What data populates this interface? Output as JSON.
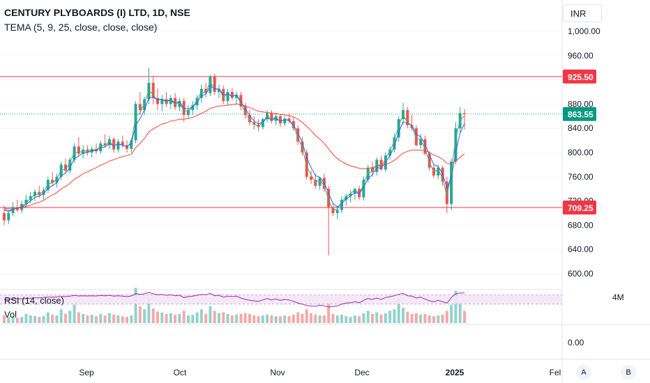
{
  "header": {
    "title": "CENTURY PLYBOARDS (I) LTD, 1D, NSE",
    "indicator": "TEMA (5, 9, 25, close, close, close)"
  },
  "currency": "INR",
  "time_axis": {
    "labels": [
      "Sep",
      "Oct",
      "Nov",
      "Dec",
      "2025",
      "Fel"
    ]
  },
  "buttons": {
    "a": "A",
    "b": "B"
  },
  "panes": {
    "rsi_label": "RSI (14, close)",
    "vol_label": "Vol",
    "vol_axis_top": "4M",
    "vol_axis_zero": "0.00"
  },
  "price_labels": {
    "level_high": "925.50",
    "last_price": "863.55",
    "level_low": "709.25"
  },
  "colors": {
    "up": "#26a69a",
    "down": "#ef5350",
    "level_line": "#f23645",
    "ma_fast": "#4caf50",
    "ma_mid": "#2962ff",
    "ma_slow": "#f44336",
    "rsi": "#9c27b0",
    "last_price_bg": "#089981"
  },
  "chart_data": {
    "type": "candlestick",
    "title": "CENTURY PLYBOARDS (I) LTD, 1D, NSE",
    "y_axis": {
      "ticks": [
        1000,
        960,
        920,
        880,
        840,
        800,
        760,
        720,
        680,
        640,
        600
      ],
      "tick_labels": [
        "1,000.00",
        "960.00",
        "920.00",
        "880.00",
        "840.00",
        "800.00",
        "760.00",
        "720.00",
        "680.00",
        "640.00",
        "600.00"
      ],
      "range": [
        580,
        1035
      ]
    },
    "x_axis": {
      "labels": [
        "Sep",
        "Oct",
        "Nov",
        "Dec",
        "2025",
        "Fel"
      ]
    },
    "horizontal_levels": [
      925.5,
      709.25
    ],
    "last_price": 863.55,
    "candles": [
      [
        700,
        712,
        680,
        688
      ],
      [
        688,
        705,
        682,
        700
      ],
      [
        700,
        718,
        695,
        710
      ],
      [
        710,
        722,
        702,
        705
      ],
      [
        705,
        720,
        700,
        715
      ],
      [
        715,
        730,
        708,
        722
      ],
      [
        722,
        735,
        716,
        728
      ],
      [
        728,
        740,
        720,
        735
      ],
      [
        735,
        745,
        725,
        730
      ],
      [
        730,
        742,
        722,
        738
      ],
      [
        738,
        760,
        733,
        755
      ],
      [
        755,
        768,
        745,
        750
      ],
      [
        750,
        765,
        742,
        760
      ],
      [
        760,
        785,
        755,
        780
      ],
      [
        780,
        790,
        765,
        770
      ],
      [
        770,
        792,
        765,
        788
      ],
      [
        788,
        815,
        783,
        810
      ],
      [
        810,
        825,
        795,
        798
      ],
      [
        798,
        812,
        790,
        805
      ],
      [
        805,
        812,
        795,
        800
      ],
      [
        800,
        810,
        792,
        806
      ],
      [
        806,
        815,
        798,
        802
      ],
      [
        802,
        820,
        798,
        815
      ],
      [
        815,
        830,
        808,
        812
      ],
      [
        812,
        828,
        806,
        822
      ],
      [
        822,
        825,
        800,
        805
      ],
      [
        805,
        822,
        800,
        818
      ],
      [
        818,
        828,
        808,
        812
      ],
      [
        812,
        820,
        800,
        806
      ],
      [
        806,
        824,
        800,
        820
      ],
      [
        820,
        885,
        815,
        880
      ],
      [
        880,
        900,
        862,
        870
      ],
      [
        870,
        892,
        862,
        888
      ],
      [
        888,
        940,
        880,
        915
      ],
      [
        915,
        925,
        880,
        890
      ],
      [
        890,
        905,
        870,
        880
      ],
      [
        880,
        895,
        868,
        888
      ],
      [
        888,
        900,
        875,
        880
      ],
      [
        880,
        895,
        872,
        890
      ],
      [
        890,
        898,
        870,
        875
      ],
      [
        875,
        890,
        868,
        885
      ],
      [
        885,
        890,
        850,
        862
      ],
      [
        862,
        878,
        855,
        870
      ],
      [
        870,
        885,
        862,
        878
      ],
      [
        878,
        895,
        870,
        890
      ],
      [
        890,
        912,
        882,
        905
      ],
      [
        905,
        915,
        890,
        898
      ],
      [
        898,
        928,
        893,
        925
      ],
      [
        925,
        930,
        895,
        900
      ],
      [
        900,
        912,
        890,
        905
      ],
      [
        905,
        910,
        880,
        885
      ],
      [
        885,
        905,
        878,
        900
      ],
      [
        900,
        906,
        886,
        890
      ],
      [
        890,
        900,
        880,
        895
      ],
      [
        895,
        900,
        870,
        876
      ],
      [
        876,
        882,
        856,
        862
      ],
      [
        862,
        870,
        845,
        850
      ],
      [
        850,
        860,
        838,
        846
      ],
      [
        846,
        855,
        835,
        842
      ],
      [
        842,
        858,
        838,
        855
      ],
      [
        855,
        870,
        850,
        865
      ],
      [
        865,
        870,
        848,
        852
      ],
      [
        852,
        866,
        845,
        860
      ],
      [
        860,
        864,
        842,
        848
      ],
      [
        848,
        860,
        844,
        856
      ],
      [
        856,
        865,
        848,
        852
      ],
      [
        852,
        858,
        836,
        840
      ],
      [
        840,
        845,
        812,
        818
      ],
      [
        818,
        826,
        795,
        800
      ],
      [
        800,
        805,
        755,
        760
      ],
      [
        760,
        770,
        748,
        755
      ],
      [
        755,
        765,
        740,
        745
      ],
      [
        745,
        760,
        738,
        758
      ],
      [
        758,
        765,
        735,
        740
      ],
      [
        740,
        745,
        630,
        710
      ],
      [
        710,
        715,
        695,
        700
      ],
      [
        700,
        712,
        690,
        705
      ],
      [
        705,
        728,
        700,
        722
      ],
      [
        722,
        732,
        712,
        728
      ],
      [
        728,
        738,
        718,
        732
      ],
      [
        732,
        742,
        722,
        740
      ],
      [
        740,
        745,
        722,
        726
      ],
      [
        726,
        760,
        721,
        755
      ],
      [
        755,
        780,
        750,
        775
      ],
      [
        775,
        785,
        760,
        768
      ],
      [
        768,
        792,
        762,
        788
      ],
      [
        788,
        795,
        770,
        772
      ],
      [
        772,
        800,
        768,
        795
      ],
      [
        795,
        810,
        788,
        805
      ],
      [
        805,
        832,
        800,
        825
      ],
      [
        825,
        860,
        818,
        855
      ],
      [
        855,
        882,
        846,
        870
      ],
      [
        870,
        875,
        840,
        845
      ],
      [
        845,
        862,
        836,
        840
      ],
      [
        840,
        845,
        810,
        812
      ],
      [
        812,
        830,
        806,
        822
      ],
      [
        822,
        828,
        795,
        798
      ],
      [
        798,
        802,
        770,
        775
      ],
      [
        775,
        782,
        758,
        762
      ],
      [
        762,
        780,
        756,
        775
      ],
      [
        775,
        778,
        745,
        752
      ],
      [
        752,
        760,
        700,
        715
      ],
      [
        715,
        790,
        705,
        785
      ],
      [
        785,
        850,
        780,
        840
      ],
      [
        840,
        875,
        832,
        865
      ],
      [
        865,
        872,
        838,
        863.55
      ]
    ],
    "series": [
      {
        "name": "TEMA 5",
        "values": [
          705,
          702,
          706,
          708,
          711,
          717,
          724,
          731,
          731,
          735,
          748,
          750,
          756,
          772,
          772,
          783,
          801,
          799,
          803,
          802,
          805,
          804,
          811,
          811,
          819,
          810,
          815,
          812,
          809,
          817,
          860,
          866,
          881,
          903,
          895,
          886,
          888,
          883,
          887,
          879,
          883,
          868,
          869,
          875,
          887,
          900,
          899,
          917,
          905,
          905,
          891,
          897,
          892,
          895,
          881,
          866,
          854,
          847,
          843,
          851,
          861,
          855,
          858,
          851,
          855,
          853,
          843,
          825,
          808,
          777,
          763,
          751,
          755,
          745,
          722,
          705,
          706,
          718,
          727,
          732,
          739,
          731,
          748,
          767,
          768,
          782,
          776,
          790,
          802,
          819,
          845,
          862,
          850,
          844,
          822,
          822,
          806,
          784,
          768,
          772,
          757,
          727,
          769,
          823,
          854,
          860
        ]
      },
      {
        "name": "TEMA 9",
        "values": [
          706,
          704,
          706,
          708,
          710,
          714,
          720,
          726,
          728,
          732,
          741,
          745,
          750,
          762,
          766,
          775,
          790,
          794,
          799,
          800,
          803,
          803,
          808,
          809,
          815,
          811,
          814,
          812,
          810,
          815,
          845,
          856,
          870,
          890,
          891,
          887,
          888,
          885,
          887,
          882,
          884,
          873,
          872,
          875,
          883,
          894,
          896,
          910,
          905,
          905,
          895,
          897,
          893,
          895,
          884,
          872,
          861,
          852,
          847,
          850,
          857,
          854,
          856,
          852,
          854,
          853,
          846,
          832,
          817,
          792,
          775,
          762,
          759,
          750,
          733,
          716,
          710,
          716,
          723,
          728,
          734,
          732,
          742,
          758,
          763,
          775,
          774,
          784,
          795,
          810,
          833,
          851,
          848,
          845,
          830,
          826,
          814,
          796,
          780,
          777,
          765,
          741,
          758,
          800,
          832,
          848
        ]
      },
      {
        "name": "TEMA 25",
        "values": [
          708,
          707,
          707,
          708,
          709,
          711,
          713,
          716,
          718,
          721,
          726,
          730,
          734,
          740,
          744,
          749,
          756,
          760,
          765,
          768,
          772,
          775,
          779,
          782,
          786,
          788,
          791,
          793,
          795,
          797,
          808,
          815,
          823,
          834,
          839,
          843,
          847,
          849,
          852,
          853,
          855,
          855,
          856,
          858,
          861,
          865,
          868,
          873,
          875,
          877,
          877,
          878,
          879,
          880,
          879,
          877,
          874,
          871,
          868,
          867,
          866,
          865,
          864,
          863,
          862,
          861,
          859,
          855,
          850,
          843,
          836,
          828,
          822,
          815,
          806,
          797,
          790,
          785,
          781,
          778,
          776,
          774,
          773,
          774,
          775,
          777,
          778,
          780,
          783,
          787,
          793,
          799,
          802,
          804,
          804,
          804,
          803,
          800,
          796,
          793,
          789,
          782,
          781,
          786,
          792,
          798
        ]
      },
      {
        "name": "RSI",
        "values": [
          50,
          51,
          52,
          52,
          53,
          54,
          55,
          57,
          57,
          58,
          60,
          60,
          61,
          63,
          62,
          64,
          67,
          65,
          66,
          65,
          66,
          65,
          67,
          66,
          68,
          64,
          66,
          64,
          62,
          65,
          75,
          72,
          74,
          80,
          74,
          70,
          72,
          68,
          70,
          66,
          68,
          58,
          62,
          64,
          68,
          72,
          70,
          76,
          66,
          68,
          60,
          64,
          62,
          64,
          56,
          50,
          46,
          44,
          42,
          48,
          54,
          48,
          52,
          46,
          50,
          48,
          42,
          34,
          30,
          24,
          22,
          20,
          26,
          22,
          18,
          20,
          22,
          30,
          34,
          36,
          40,
          36,
          46,
          54,
          50,
          56,
          50,
          58,
          62,
          66,
          72,
          76,
          66,
          64,
          56,
          60,
          52,
          44,
          40,
          46,
          40,
          34,
          58,
          74,
          78,
          78
        ]
      }
    ],
    "volume": [
      1.0,
      0.8,
      0.9,
      0.7,
      0.8,
      1.2,
      1.0,
      0.9,
      0.8,
      0.9,
      1.4,
      1.1,
      1.0,
      1.8,
      1.2,
      1.6,
      2.4,
      1.4,
      1.2,
      1.0,
      1.1,
      0.9,
      1.2,
      1.0,
      1.3,
      1.1,
      1.0,
      0.9,
      0.8,
      1.0,
      4.6,
      2.2,
      1.8,
      3.2,
      1.9,
      1.5,
      1.4,
      1.2,
      1.3,
      1.1,
      1.2,
      1.6,
      1.0,
      1.1,
      1.4,
      1.8,
      1.2,
      2.2,
      1.6,
      1.3,
      1.4,
      1.2,
      1.0,
      1.1,
      1.2,
      1.3,
      1.2,
      1.0,
      0.9,
      1.0,
      1.1,
      1.0,
      0.9,
      0.9,
      1.0,
      0.9,
      1.1,
      1.4,
      1.2,
      1.8,
      1.3,
      1.1,
      1.0,
      1.0,
      2.6,
      1.2,
      1.0,
      1.1,
      0.9,
      0.8,
      1.0,
      0.9,
      1.3,
      1.6,
      1.2,
      1.4,
      1.1,
      1.3,
      1.6,
      1.8,
      3.2,
      2.0,
      1.5,
      1.2,
      1.3,
      1.1,
      1.2,
      1.0,
      0.9,
      1.0,
      1.1,
      1.6,
      2.4,
      4.2,
      2.6,
      1.6
    ]
  }
}
